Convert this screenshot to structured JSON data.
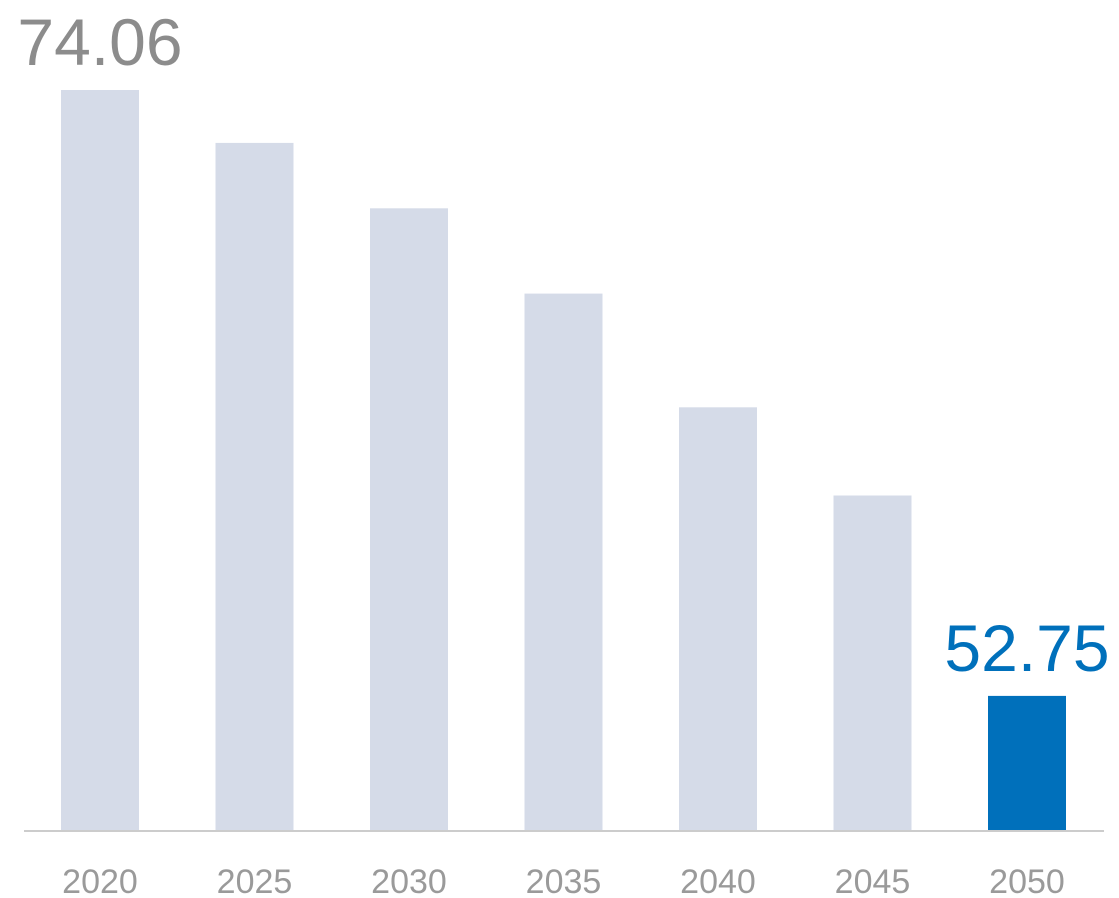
{
  "chart_data": {
    "type": "bar",
    "title": "",
    "xlabel": "",
    "ylabel": "",
    "categories": [
      "2020",
      "2025",
      "2030",
      "2035",
      "2040",
      "2045",
      "2050"
    ],
    "values": [
      74.06,
      72.2,
      69.9,
      66.9,
      62.9,
      59.8,
      52.75
    ],
    "ylim": [
      48.0,
      74.06
    ],
    "grid": false,
    "legend": "none",
    "data_labels": [
      {
        "category": "2020",
        "text": "74.06"
      },
      {
        "category": "2050",
        "text": "52.75"
      }
    ],
    "highlight_category": "2050",
    "colors": {
      "bar": "#d5dbe8",
      "highlight_bar": "#0070bb",
      "label": "#8c8c8c",
      "highlight_label": "#0070bb",
      "axis": "#cccccc",
      "tick": "#9a9a9a"
    }
  }
}
